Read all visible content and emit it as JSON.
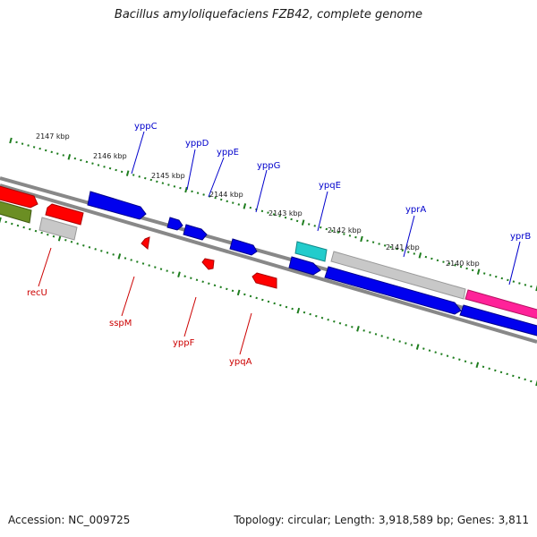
{
  "title": "Bacillus amyloliquefaciens FZB42, complete genome",
  "footer": {
    "accession": "Accession: NC_009725",
    "stats": "Topology: circular; Length: 3,918,589 bp; Genes: 3,811"
  },
  "colors": {
    "backbone": "#888888",
    "tick": "#1e7d1e",
    "forward_label": "#0000cc",
    "reverse_label": "#cc0000",
    "blue_gene": "#0000ee",
    "red_gene": "#ff0000",
    "gray_gene": "#c8c8c8",
    "cyan_gene": "#22cccc",
    "magenta_gene": "#ff2299",
    "olive_gene": "#6b8e23"
  },
  "scale_labels": [
    "2147 kbp",
    "2146 kbp",
    "2145 kbp",
    "2144 kbp",
    "2143 kbp",
    "2142 kbp",
    "2141 kbp",
    "2140 kbp"
  ],
  "gene_labels_forward": [
    "yppC",
    "yppD",
    "yppE",
    "yppG",
    "ypqE",
    "yprA",
    "yprB"
  ],
  "gene_labels_reverse": [
    "recU",
    "sspM",
    "yppF",
    "ypqA"
  ]
}
